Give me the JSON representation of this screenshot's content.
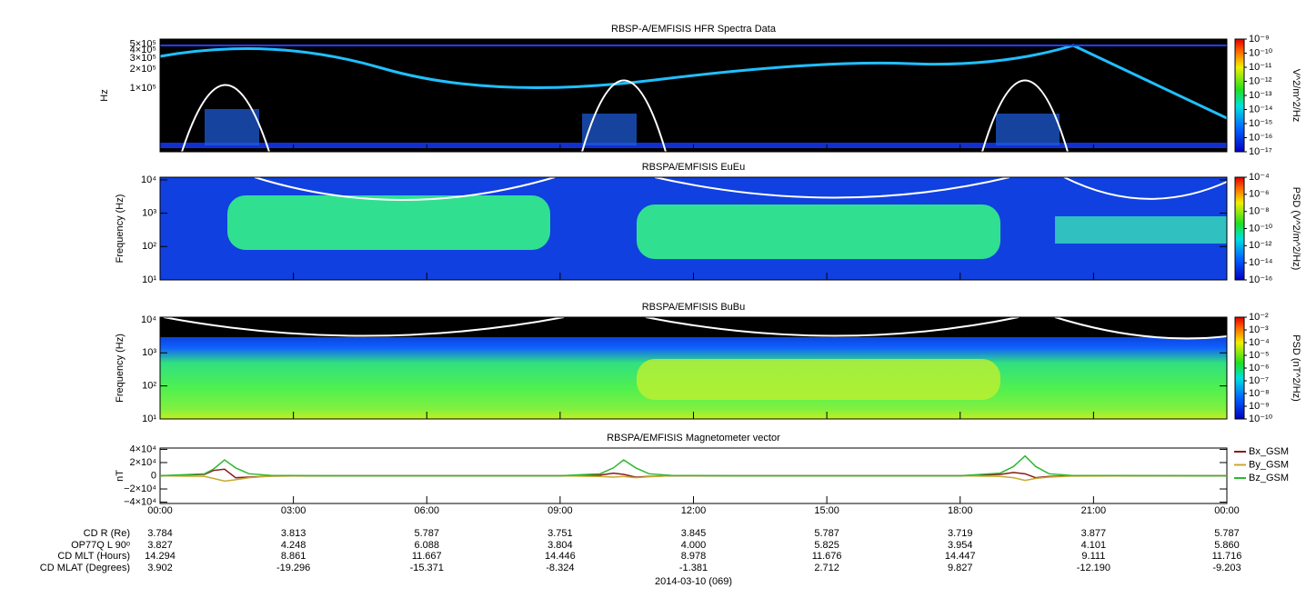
{
  "chart_data": [
    {
      "type": "spectrogram",
      "title": "RBSP-A/EMFISIS  HFR Spectra Data",
      "ylabel": "Hz",
      "log": true,
      "ylim": [
        10000,
        600000
      ],
      "yticks": [
        {
          "value": 500000,
          "label": "5×10⁵"
        },
        {
          "value": 400000,
          "label": "4×10⁵"
        },
        {
          "value": 300000,
          "label": "3×10⁵"
        },
        {
          "value": 200000,
          "label": "2×10⁵"
        },
        {
          "value": 100000,
          "label": "1×10⁵"
        }
      ],
      "colorbar": {
        "label": "V^2/m^2/Hz",
        "lim": [
          1e-17,
          1e-09
        ],
        "ticks": [
          {
            "value": 1e-09,
            "label": "10⁻⁹"
          },
          {
            "value": 1e-10,
            "label": "10⁻¹⁰"
          },
          {
            "value": 1e-11,
            "label": "10⁻¹¹"
          },
          {
            "value": 1e-12,
            "label": "10⁻¹²"
          },
          {
            "value": 1e-13,
            "label": "10⁻¹³"
          },
          {
            "value": 1e-14,
            "label": "10⁻¹⁴"
          },
          {
            "value": 1e-15,
            "label": "10⁻¹⁵"
          },
          {
            "value": 1e-16,
            "label": "10⁻¹⁶"
          },
          {
            "value": 1e-17,
            "label": "10⁻¹⁷"
          }
        ]
      }
    },
    {
      "type": "spectrogram",
      "title": "RBSPA/EMFISIS  EuEu",
      "ylabel": "Frequency (Hz)",
      "log": true,
      "ylim": [
        10,
        12000
      ],
      "yticks": [
        {
          "value": 10000,
          "label": "10⁴"
        },
        {
          "value": 1000,
          "label": "10³"
        },
        {
          "value": 100,
          "label": "10²"
        },
        {
          "value": 10,
          "label": "10¹"
        }
      ],
      "colorbar": {
        "label": "PSD (V^2/m^2/Hz)",
        "lim": [
          1e-16,
          0.0001
        ],
        "ticks": [
          {
            "value": 0.0001,
            "label": "10⁻⁴"
          },
          {
            "value": 1e-06,
            "label": "10⁻⁶"
          },
          {
            "value": 1e-08,
            "label": "10⁻⁸"
          },
          {
            "value": 1e-10,
            "label": "10⁻¹⁰"
          },
          {
            "value": 1e-12,
            "label": "10⁻¹²"
          },
          {
            "value": 1e-14,
            "label": "10⁻¹⁴"
          },
          {
            "value": 1e-16,
            "label": "10⁻¹⁶"
          }
        ]
      }
    },
    {
      "type": "spectrogram",
      "title": "RBSPA/EMFISIS  BuBu",
      "ylabel": "Frequency (Hz)",
      "log": true,
      "ylim": [
        10,
        12000
      ],
      "yticks": [
        {
          "value": 10000,
          "label": "10⁴"
        },
        {
          "value": 1000,
          "label": "10³"
        },
        {
          "value": 100,
          "label": "10²"
        },
        {
          "value": 10,
          "label": "10¹"
        }
      ],
      "colorbar": {
        "label": "PSD (nT^2/Hz)",
        "lim": [
          1e-10,
          0.01
        ],
        "ticks": [
          {
            "value": 0.01,
            "label": "10⁻²"
          },
          {
            "value": 0.001,
            "label": "10⁻³"
          },
          {
            "value": 0.0001,
            "label": "10⁻⁴"
          },
          {
            "value": 1e-05,
            "label": "10⁻⁵"
          },
          {
            "value": 1e-06,
            "label": "10⁻⁶"
          },
          {
            "value": 1e-07,
            "label": "10⁻⁷"
          },
          {
            "value": 1e-08,
            "label": "10⁻⁸"
          },
          {
            "value": 1e-09,
            "label": "10⁻⁹"
          },
          {
            "value": 1e-10,
            "label": "10⁻¹⁰"
          }
        ]
      }
    },
    {
      "type": "line",
      "title": "RBSPA/EMFISIS  Magnetometer vector",
      "ylabel": "nT",
      "legend": "right",
      "xlim": [
        0,
        24
      ],
      "xticks": [
        {
          "value": 0,
          "label": "00:00"
        },
        {
          "value": 3,
          "label": "03:00"
        },
        {
          "value": 6,
          "label": "06:00"
        },
        {
          "value": 9,
          "label": "09:00"
        },
        {
          "value": 12,
          "label": "12:00"
        },
        {
          "value": 15,
          "label": "15:00"
        },
        {
          "value": 18,
          "label": "18:00"
        },
        {
          "value": 21,
          "label": "21:00"
        },
        {
          "value": 24,
          "label": "00:00"
        }
      ],
      "ylim": [
        -42000,
        42000
      ],
      "yticks": [
        {
          "value": 40000,
          "label": "4×10⁴"
        },
        {
          "value": 20000,
          "label": "2×10⁴"
        },
        0,
        {
          "value": -20000,
          "label": "−2×10⁴"
        },
        {
          "value": -40000,
          "label": "−4×10⁴"
        }
      ],
      "x": [
        0,
        1,
        1.2,
        1.45,
        1.7,
        2,
        2.5,
        4,
        9,
        9.9,
        10.2,
        10.43,
        10.7,
        11,
        11.5,
        13,
        18,
        18.9,
        19.2,
        19.46,
        19.7,
        20,
        20.5,
        24
      ],
      "series": [
        {
          "name": "Bx_GSM",
          "color": "#8b1a1a",
          "values": [
            0,
            2000,
            8000,
            10000,
            -3000,
            -2000,
            -500,
            0,
            0,
            1000,
            4000,
            2000,
            -2000,
            -1000,
            0,
            0,
            0,
            2000,
            5000,
            3000,
            -3000,
            -1000,
            0,
            0
          ]
        },
        {
          "name": "By_GSM",
          "color": "#c8a830",
          "values": [
            0,
            -1000,
            -4000,
            -8000,
            -6000,
            -3000,
            -500,
            0,
            0,
            -1000,
            -2000,
            -1000,
            -3000,
            -1500,
            0,
            0,
            0,
            -1000,
            -3000,
            -7000,
            -4000,
            -2000,
            -500,
            0
          ]
        },
        {
          "name": "Bz_GSM",
          "color": "#2eb82e",
          "values": [
            0,
            3000,
            10000,
            24000,
            12000,
            3000,
            500,
            0,
            0,
            3000,
            12000,
            24000,
            12000,
            3000,
            500,
            0,
            0,
            4000,
            14000,
            30000,
            14000,
            3000,
            500,
            0
          ]
        }
      ]
    }
  ],
  "ephemeris": {
    "rows": [
      {
        "label": "CD R (Re)",
        "values": [
          "3.784",
          "3.813",
          "5.787",
          "3.751",
          "3.845",
          "5.787",
          "3.719",
          "3.877",
          "5.787"
        ]
      },
      {
        "label": "OP77Q L 90ᵒ",
        "values": [
          "3.827",
          "4.248",
          "6.088",
          "3.804",
          "4.000",
          "5.825",
          "3.954",
          "4.101",
          "5.860"
        ]
      },
      {
        "label": "CD MLT (Hours)",
        "values": [
          "14.294",
          "8.861",
          "11.667",
          "14.446",
          "8.978",
          "11.676",
          "14.447",
          "9.111",
          "11.716"
        ]
      },
      {
        "label": "CD MLAT (Degrees)",
        "values": [
          "3.902",
          "-19.296",
          "-15.371",
          "-8.324",
          "-1.381",
          "2.712",
          "9.827",
          "-12.190",
          "-9.203"
        ]
      }
    ]
  },
  "date": "2014-03-10 (069)"
}
